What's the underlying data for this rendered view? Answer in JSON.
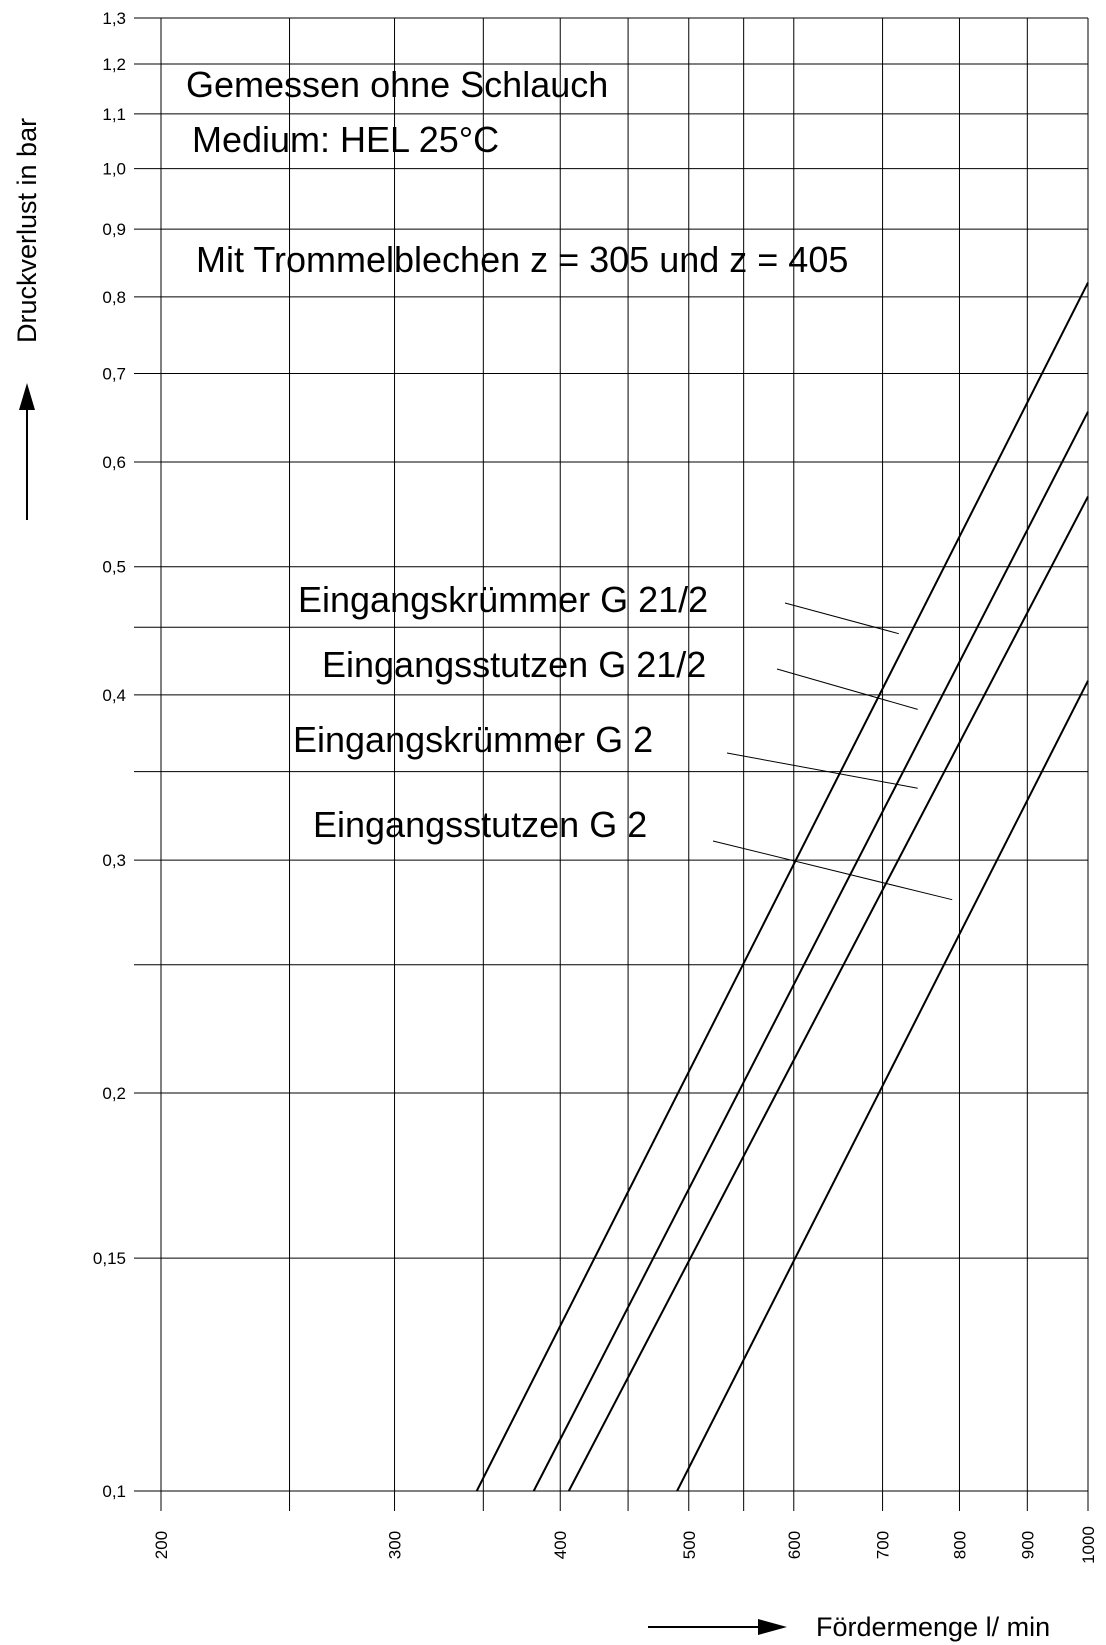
{
  "chart_data": {
    "type": "line",
    "title": "",
    "xlabel": "Fördermenge l/ min",
    "ylabel": "Druckverlust in bar",
    "x_scale": "log",
    "y_scale": "log",
    "xlim": [
      200,
      1000
    ],
    "ylim": [
      0.1,
      1.3
    ],
    "grid": true,
    "x_grid": [
      200,
      250,
      300,
      350,
      400,
      450,
      500,
      550,
      600,
      700,
      800,
      900,
      1000
    ],
    "x_ticks": [
      200,
      300,
      400,
      500,
      600,
      700,
      800,
      900,
      1000
    ],
    "x_tick_labels": [
      "200",
      "300",
      "400",
      "500",
      "600",
      "700",
      "800",
      "900",
      "1000"
    ],
    "y_ticks": [
      0.1,
      0.15,
      0.2,
      0.25,
      0.3,
      0.35,
      0.4,
      0.45,
      0.5,
      0.6,
      0.7,
      0.8,
      0.9,
      1.0,
      1.1,
      1.2,
      1.3
    ],
    "y_tick_labels": [
      "0,1",
      "0,15",
      "0,2",
      "",
      "0,3",
      "",
      "0,4",
      "",
      "0,5",
      "0,6",
      "0,7",
      "0,8",
      "0,9",
      "1,0",
      "1,1",
      "1,2",
      "1,3"
    ],
    "annotations": [
      "Gemessen ohne Schlauch",
      "Medium: HEL 25°C",
      "Mit Trommelblechen z = 305 und z = 405"
    ],
    "series": [
      {
        "name": "Eingangskrümmer G 21/2",
        "x": [
          346,
          1000
        ],
        "y": [
          0.1,
          0.82
        ]
      },
      {
        "name": "Eingangsstutzen G 21/2",
        "x": [
          382,
          1000
        ],
        "y": [
          0.1,
          0.655
        ]
      },
      {
        "name": "Eingangskrümmer G 2",
        "x": [
          406,
          1000
        ],
        "y": [
          0.1,
          0.565
        ]
      },
      {
        "name": "Eingangsstutzen G 2",
        "x": [
          490,
          1000
        ],
        "y": [
          0.1,
          0.41
        ]
      }
    ],
    "leaders": [
      {
        "series": 0,
        "x": 720,
        "y": 0.445
      },
      {
        "series": 1,
        "x": 744,
        "y": 0.39
      },
      {
        "series": 2,
        "x": 744,
        "y": 0.34
      },
      {
        "series": 3,
        "x": 790,
        "y": 0.28
      }
    ]
  }
}
